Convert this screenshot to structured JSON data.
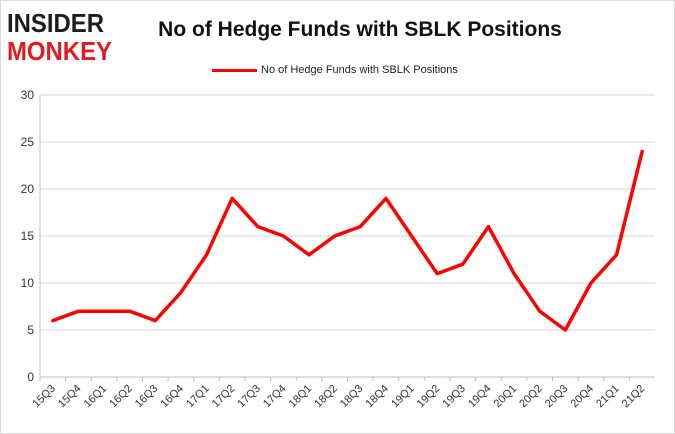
{
  "brand": {
    "line1": "INSIDER",
    "line2": "MONKEY"
  },
  "chart_data": {
    "type": "line",
    "title": "No of Hedge Funds with SBLK Positions",
    "xlabel": "",
    "ylabel": "",
    "ylim": [
      0,
      30
    ],
    "yticks": [
      0,
      5,
      10,
      15,
      20,
      25,
      30
    ],
    "grid": true,
    "legend_position": "top-center",
    "categories": [
      "15Q3",
      "15Q4",
      "16Q1",
      "16Q2",
      "16Q3",
      "16Q4",
      "17Q1",
      "17Q2",
      "17Q3",
      "17Q4",
      "18Q1",
      "18Q2",
      "18Q3",
      "18Q4",
      "19Q1",
      "19Q2",
      "19Q3",
      "19Q4",
      "20Q1",
      "20Q2",
      "20Q3",
      "20Q4",
      "21Q1",
      "21Q2"
    ],
    "series": [
      {
        "name": "No of Hedge Funds with SBLK Positions",
        "color": "#ff0000",
        "values": [
          6,
          7,
          7,
          7,
          6,
          9,
          13,
          19,
          16,
          15,
          13,
          15,
          16,
          19,
          15,
          11,
          12,
          16,
          11,
          7,
          5,
          10,
          13,
          24
        ]
      }
    ]
  }
}
